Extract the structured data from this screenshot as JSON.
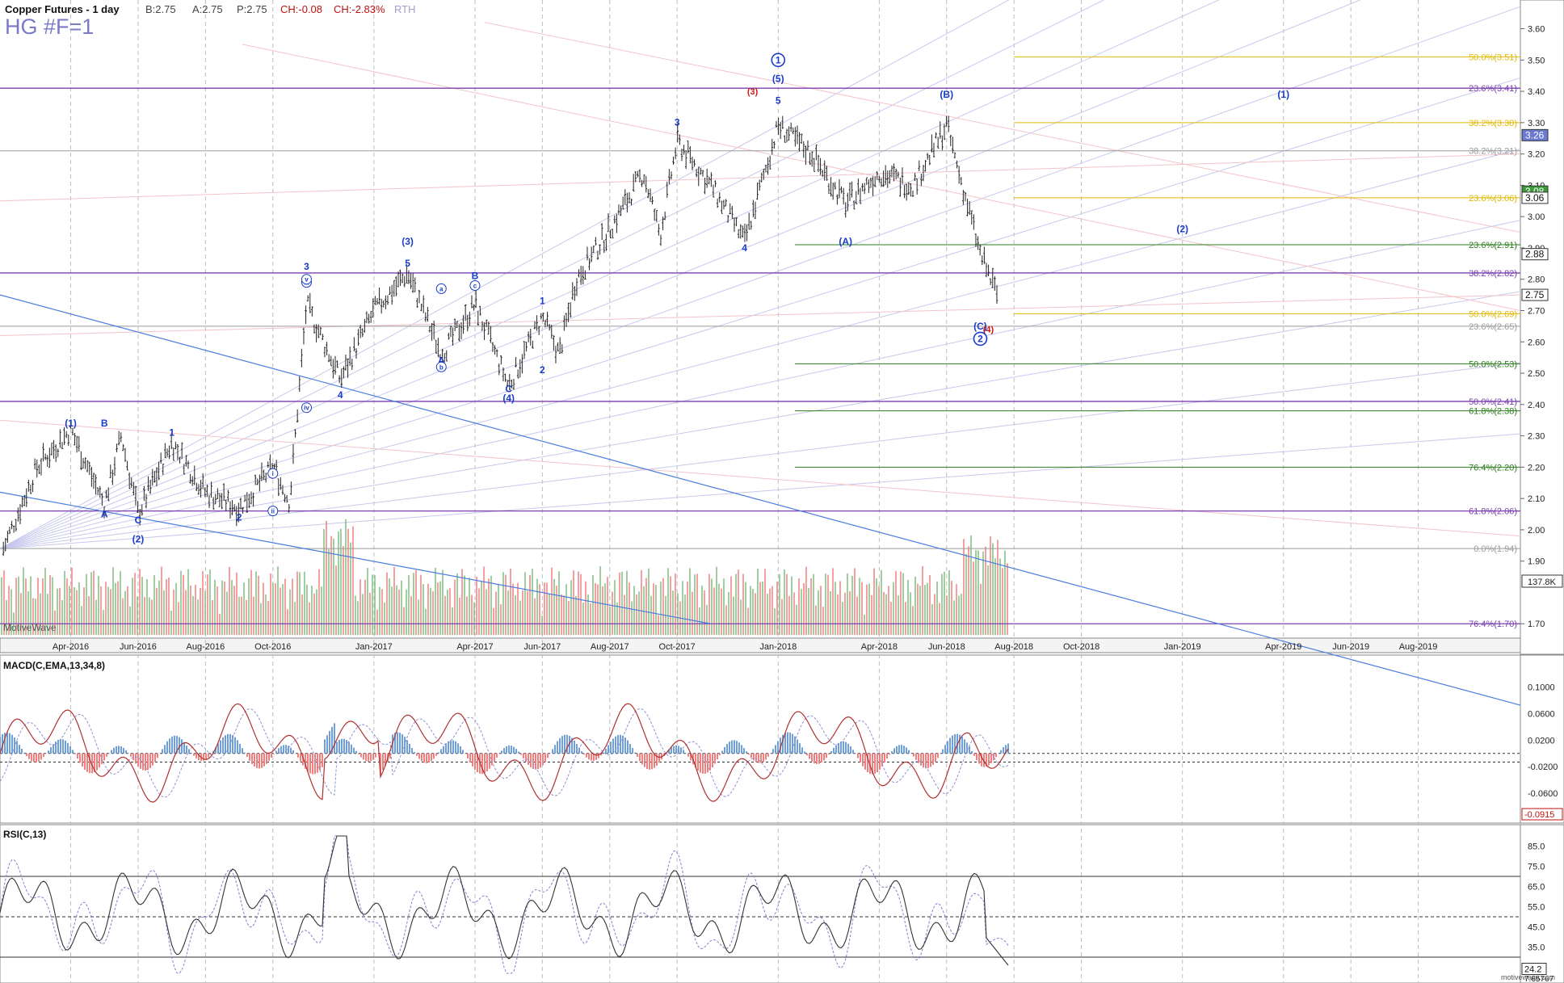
{
  "header": {
    "title": "Copper Futures - 1 day",
    "quote_b": "B:2.75",
    "quote_a": "A:2.75",
    "quote_p": "P:2.75",
    "change": "CH:-0.08",
    "change_pct": "CH:-2.83%",
    "session": "RTH",
    "symbol": "HG #F=1",
    "watermark": "MotiveWave",
    "footer_brand": "motivewave.com"
  },
  "colors": {
    "up_bar": "#222222",
    "volume_up": "#7fbf7f",
    "volume_down": "#f08080",
    "purple_line": "#7a3fb0",
    "green_fib": "#2e7d1e",
    "yellow_fib": "#e0b800",
    "gray_fib": "#9a9a9a",
    "trend_blue": "#4a7de0",
    "wave_blue": "#1a3cc8",
    "wave_red": "#d01818",
    "macd_line": "#b03030",
    "macd_signal": "#9090d0",
    "rsi_line": "#333333",
    "rsi_band": "#8080d0"
  },
  "chart_data": [
    {
      "type": "candlestick",
      "title": "Copper Futures - 1 day",
      "x_ticks": [
        "Apr-2016",
        "Jun-2016",
        "Aug-2016",
        "Oct-2016",
        "Jan-2017",
        "Apr-2017",
        "Jun-2017",
        "Aug-2017",
        "Oct-2017",
        "Jan-2018",
        "Apr-2018",
        "Jun-2018",
        "Aug-2018",
        "Oct-2018",
        "Jan-2019",
        "Apr-2019",
        "Jun-2019",
        "Aug-2019"
      ],
      "y_ticks": [
        "3.60",
        "3.50",
        "3.40",
        "3.30",
        "3.20",
        "3.10",
        "3.00",
        "2.90",
        "2.80",
        "2.70",
        "2.60",
        "2.50",
        "2.40",
        "2.30",
        "2.20",
        "2.10",
        "2.00",
        "1.90",
        "1.70"
      ],
      "ylim": [
        1.68,
        3.64
      ],
      "price_path": [
        [
          "Feb-2016",
          1.94
        ],
        [
          "Mar-2016",
          2.2
        ],
        [
          "Apr-2016",
          2.32
        ],
        [
          "May-2016",
          2.08
        ],
        [
          "May-2016b",
          2.3
        ],
        [
          "Jun-2016",
          2.05
        ],
        [
          "Jul-2016",
          2.28
        ],
        [
          "Aug-2016",
          2.12
        ],
        [
          "Sep-2016",
          2.07
        ],
        [
          "Oct-2016",
          2.2
        ],
        [
          "Oct-2016b",
          2.09
        ],
        [
          "Nov-2016",
          2.72
        ],
        [
          "Dec-2016",
          2.48
        ],
        [
          "Jan-2017",
          2.7
        ],
        [
          "Feb-2017",
          2.82
        ],
        [
          "Mar-2017",
          2.56
        ],
        [
          "Apr-2017",
          2.72
        ],
        [
          "May-2017",
          2.46
        ],
        [
          "Jun-2017",
          2.68
        ],
        [
          "Jun-2017b",
          2.56
        ],
        [
          "Jul-2017",
          2.8
        ],
        [
          "Aug-2017",
          2.96
        ],
        [
          "Sep-2017",
          3.14
        ],
        [
          "Sep-2017b",
          2.94
        ],
        [
          "Oct-2017",
          3.24
        ],
        [
          "Nov-2017",
          3.1
        ],
        [
          "Dec-2017",
          2.92
        ],
        [
          "Jan-2018",
          3.29
        ],
        [
          "Feb-2018",
          3.2
        ],
        [
          "Mar-2018",
          3.04
        ],
        [
          "Apr-2018",
          3.14
        ],
        [
          "May-2018",
          3.1
        ],
        [
          "Jun-2018",
          3.29
        ],
        [
          "Jul-2018",
          2.88
        ],
        [
          "Jul-2018b",
          2.75
        ]
      ],
      "last_price_labels": [
        "3.26",
        "3.08",
        "3.06",
        "2.88",
        "2.75"
      ],
      "fib_levels": [
        {
          "label": "50.0%(3.51)",
          "value": 3.51,
          "color": "yellow"
        },
        {
          "label": "23.6%(3.41)",
          "value": 3.41,
          "color": "purple"
        },
        {
          "label": "38.2%(3.30)",
          "value": 3.3,
          "color": "yellow"
        },
        {
          "label": "38.2%(3.21)",
          "value": 3.21,
          "color": "gray"
        },
        {
          "label": "23.6%(3.06)",
          "value": 3.06,
          "color": "yellow"
        },
        {
          "label": "23.6%(2.91)",
          "value": 2.91,
          "color": "green"
        },
        {
          "label": "38.2%(2.82)",
          "value": 2.82,
          "color": "purple"
        },
        {
          "label": "50.0%(2.69)",
          "value": 2.69,
          "color": "yellow"
        },
        {
          "label": "23.6%(2.65)",
          "value": 2.65,
          "color": "gray"
        },
        {
          "label": "50.0%(2.53)",
          "value": 2.53,
          "color": "green"
        },
        {
          "label": "50.0%(2.41)",
          "value": 2.41,
          "color": "purple"
        },
        {
          "label": "61.8%(2.38)",
          "value": 2.38,
          "color": "green"
        },
        {
          "label": "76.4%(2.20)",
          "value": 2.2,
          "color": "green"
        },
        {
          "label": "61.8%(2.06)",
          "value": 2.06,
          "color": "purple"
        },
        {
          "label": "0.0%(1.94)",
          "value": 1.94,
          "color": "gray"
        },
        {
          "label": "76.4%(1.70)",
          "value": 1.7,
          "color": "purple"
        }
      ],
      "wave_labels": [
        {
          "text": "(1)",
          "x": "Apr-2016",
          "price": 2.33
        },
        {
          "text": "B",
          "x": "May-2016",
          "price": 2.33
        },
        {
          "text": "A",
          "x": "May-2016",
          "price": 2.04
        },
        {
          "text": "C",
          "x": "Jun-2016",
          "price": 2.02
        },
        {
          "text": "(2)",
          "x": "Jun-2016",
          "price": 1.96
        },
        {
          "text": "1",
          "x": "Jul-2016",
          "price": 2.3
        },
        {
          "text": "2",
          "x": "Sep-2016",
          "price": 2.03
        },
        {
          "text": "3",
          "x": "Nov-2016",
          "price": 2.83
        },
        {
          "text": "4",
          "x": "Dec-2016",
          "price": 2.42
        },
        {
          "text": "(3)",
          "x": "Feb-2017",
          "price": 2.91
        },
        {
          "text": "5",
          "x": "Feb-2017",
          "price": 2.84
        },
        {
          "text": "B",
          "x": "Apr-2017",
          "price": 2.8
        },
        {
          "text": "A",
          "x": "Mar-2017",
          "price": 2.53
        },
        {
          "text": "C",
          "x": "May-2017",
          "price": 2.44
        },
        {
          "text": "(4)",
          "x": "May-2017",
          "price": 2.41
        },
        {
          "text": "1",
          "x": "Jun-2017",
          "price": 2.72
        },
        {
          "text": "2",
          "x": "Jun-2017",
          "price": 2.5
        },
        {
          "text": "3",
          "x": "Oct-2017",
          "price": 3.29
        },
        {
          "text": "4",
          "x": "Dec-2017",
          "price": 2.89
        },
        {
          "text": "(5)",
          "x": "Jan-2018",
          "price": 3.43
        },
        {
          "text": "5",
          "x": "Jan-2018",
          "price": 3.36
        },
        {
          "text": "(A)",
          "x": "Mar-2018",
          "price": 2.91
        },
        {
          "text": "(B)",
          "x": "Jun-2018",
          "price": 3.38
        },
        {
          "text": "(C)",
          "x": "Jul-2018",
          "price": 2.64
        },
        {
          "text": "(1)",
          "x": "Apr-2019",
          "price": 3.38
        },
        {
          "text": "(2)",
          "x": "Jan-2019",
          "price": 2.95
        }
      ],
      "wave_labels_red": [
        {
          "text": "(3)",
          "x": "Dec-2017",
          "price": 3.39
        },
        {
          "text": "(4)",
          "x": "Jul-2018",
          "price": 2.63
        }
      ],
      "circled_labels": [
        {
          "text": "1",
          "x": "Jan-2018",
          "price": 3.5
        },
        {
          "text": "2",
          "x": "Jul-2018",
          "price": 2.61
        },
        {
          "text": "iii",
          "x": "Nov-2016",
          "price": 2.79
        },
        {
          "text": "v",
          "x": "Nov-2016",
          "price": 2.8
        },
        {
          "text": "iv",
          "x": "Nov-2016",
          "price": 2.39
        },
        {
          "text": "i",
          "x": "Oct-2016",
          "price": 2.18
        },
        {
          "text": "ii",
          "x": "Oct-2016",
          "price": 2.06
        },
        {
          "text": "a",
          "x": "Mar-2017",
          "price": 2.77
        },
        {
          "text": "b",
          "x": "Mar-2017",
          "price": 2.52
        },
        {
          "text": "c",
          "x": "Apr-2017",
          "price": 2.78
        }
      ],
      "volume_label": "137.8K"
    },
    {
      "type": "line",
      "title": "MACD(C,EMA,13,34,8)",
      "y_ticks": [
        "0.1000",
        "0.0600",
        "0.0200",
        "-0.0200",
        "-0.0600"
      ],
      "last_value": "-0.0915"
    },
    {
      "type": "line",
      "title": "RSI(C,13)",
      "y_ticks": [
        "85.0",
        "75.0",
        "65.0",
        "55.0",
        "45.0",
        "35.0"
      ],
      "last_values": [
        "24.2",
        "7.65767"
      ]
    }
  ]
}
